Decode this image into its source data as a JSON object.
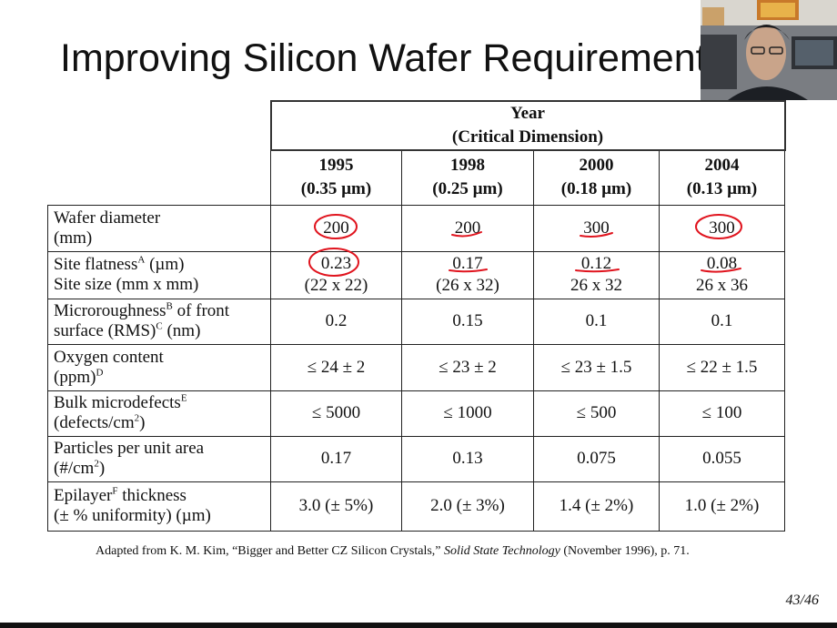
{
  "slide": {
    "title": "Improving Silicon Wafer Requirements",
    "caption_prefix": "Adapted from K. M. Kim, “Bigger and Better CZ Silicon Crystals,” ",
    "caption_journal": "Solid State Technology",
    "caption_suffix": " (November 1996), p. 71.",
    "page": "43/46"
  },
  "table": {
    "header_line1": "Year",
    "header_line2": "(Critical Dimension)",
    "columns": [
      {
        "year": "1995",
        "cd": "(0.35 µm)"
      },
      {
        "year": "1998",
        "cd": "(0.25 µm)"
      },
      {
        "year": "2000",
        "cd": "(0.18 µm)"
      },
      {
        "year": "2004",
        "cd": "(0.13 µm)"
      }
    ],
    "rows": [
      {
        "label1": "Wafer diameter",
        "label2": "(mm)",
        "values": [
          "200",
          "200",
          "300",
          "300"
        ]
      },
      {
        "label1": "Site flatness",
        "sup1": "A",
        "label1b": " (µm)",
        "label2": "Site size (mm x mm)",
        "values": [
          "0.23",
          "0.17",
          "0.12",
          "0.08"
        ],
        "values2": [
          "(22 x 22)",
          "(26 x 32)",
          "26 x 32",
          "26 x 36"
        ]
      },
      {
        "label1": "Microroughness",
        "sup1": "B",
        "label1b": " of front",
        "label2": "surface (RMS)",
        "sup2": "C",
        "label2b": " (nm)",
        "values": [
          "0.2",
          "0.15",
          "0.1",
          "0.1"
        ]
      },
      {
        "label1": "Oxygen content",
        "label2": "(ppm)",
        "sup2": "D",
        "values": [
          "≤ 24 ± 2",
          "≤ 23 ± 2",
          "≤ 23 ± 1.5",
          "≤ 22 ± 1.5"
        ]
      },
      {
        "label1": "Bulk microdefects",
        "sup1": "E",
        "label2": "(defects/cm",
        "sup2": "2",
        "label2b": ")",
        "values": [
          "≤ 5000",
          "≤ 1000",
          "≤ 500",
          "≤ 100"
        ]
      },
      {
        "label1": "Particles per unit area",
        "label2": "(#/cm",
        "sup2": "2",
        "label2b": ")",
        "values": [
          "0.17",
          "0.13",
          "0.075",
          "0.055"
        ]
      },
      {
        "label1": "Epilayer",
        "sup1": "F",
        "label1b": " thickness",
        "label2": "(± % uniformity) (µm)",
        "values": [
          "3.0 (± 5%)",
          "2.0 (± 3%)",
          "1.4 (± 2%)",
          "1.0 (± 2%)"
        ]
      }
    ]
  },
  "annotation_color": "#e0141e"
}
